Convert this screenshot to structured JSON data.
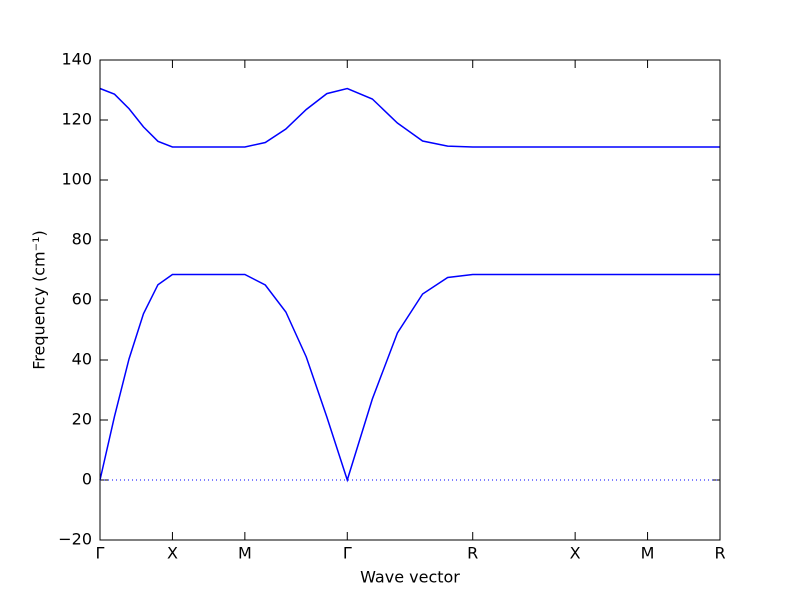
{
  "chart_data": {
    "type": "line",
    "xlabel": "Wave vector",
    "ylabel": "Frequency (cm⁻¹)",
    "x": [
      0,
      0.1,
      0.2,
      0.3,
      0.4,
      0.5,
      0.75,
      1.0,
      1.141,
      1.283,
      1.424,
      1.566,
      1.707,
      1.88,
      2.053,
      2.227,
      2.4,
      2.573,
      3.28,
      3.78,
      4.28
    ],
    "series": [
      {
        "color": "#0000ff",
        "values": [
          130.5,
          128.6,
          123.8,
          117.7,
          112.9,
          111,
          111,
          111,
          112.5,
          117,
          123.5,
          128.8,
          130.5,
          127,
          119,
          113,
          111.3,
          111,
          111,
          111,
          111
        ]
      },
      {
        "color": "#0000ff",
        "values": [
          0,
          21.2,
          40.3,
          55.4,
          65.1,
          68.5,
          68.5,
          68.5,
          65,
          56,
          41,
          21,
          0,
          27,
          49,
          62,
          67.5,
          68.5,
          68.5,
          68.5,
          68.5
        ]
      }
    ],
    "hline": 0,
    "xlim": [
      0,
      4.28
    ],
    "xticks": [
      {
        "value": 0,
        "label": "Γ"
      },
      {
        "value": 0.5,
        "label": "X"
      },
      {
        "value": 1.0,
        "label": "M"
      },
      {
        "value": 1.707,
        "label": "Γ"
      },
      {
        "value": 2.573,
        "label": "R"
      },
      {
        "value": 3.28,
        "label": "X"
      },
      {
        "value": 3.78,
        "label": "M"
      },
      {
        "value": 4.28,
        "label": "R"
      }
    ],
    "ylim": [
      -20,
      140
    ],
    "yticks": [
      {
        "value": -20,
        "label": "−20"
      },
      0,
      20,
      40,
      60,
      80,
      100,
      120,
      140
    ]
  }
}
